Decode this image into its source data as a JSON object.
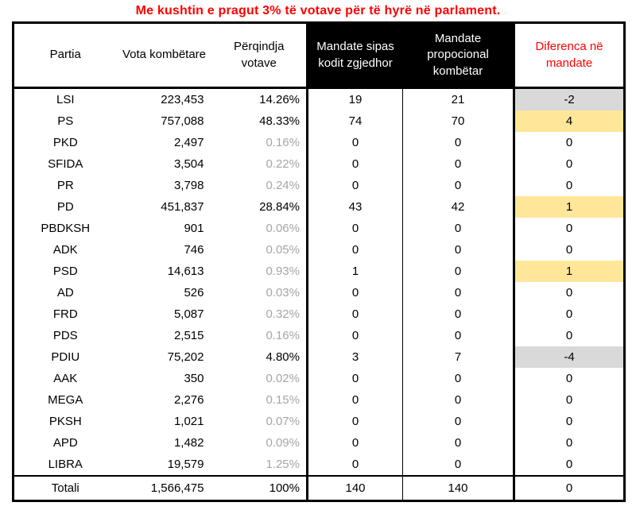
{
  "title": "Me kushtin e pragut 3% të votave për të hyrë në parlament.",
  "colors": {
    "title_text": "#FF0000",
    "mandate_header_bg": "#000000",
    "mandate_header_text": "#FFFFFF",
    "diff_header_text": "#FF0000",
    "highlight_yellow": "#FFE699",
    "highlight_gray": "#D9D9D9",
    "muted_percent_text": "#A6A6A6",
    "body_text": "#000000"
  },
  "chart_data": {
    "type": "table",
    "title": "Me kushtin e pragut 3% të votave për të hyrë në parlament.",
    "columns": [
      "Partia",
      "Vota kombëtare",
      "Përqindja votave",
      "Mandate sipas kodit zgjedhor",
      "Mandate propocional kombëtar",
      "Diferenca në mandate"
    ],
    "rows": [
      {
        "party": "LSI",
        "votes": "223,453",
        "percent": "14.26%",
        "percent_muted": false,
        "mandates_code": 19,
        "mandates_prop": 21,
        "diff": -2,
        "diff_highlight": "gray"
      },
      {
        "party": "PS",
        "votes": "757,088",
        "percent": "48.33%",
        "percent_muted": false,
        "mandates_code": 74,
        "mandates_prop": 70,
        "diff": 4,
        "diff_highlight": "yellow"
      },
      {
        "party": "PKD",
        "votes": "2,497",
        "percent": "0.16%",
        "percent_muted": true,
        "mandates_code": 0,
        "mandates_prop": 0,
        "diff": 0,
        "diff_highlight": "none"
      },
      {
        "party": "SFIDA",
        "votes": "3,504",
        "percent": "0.22%",
        "percent_muted": true,
        "mandates_code": 0,
        "mandates_prop": 0,
        "diff": 0,
        "diff_highlight": "none"
      },
      {
        "party": "PR",
        "votes": "3,798",
        "percent": "0.24%",
        "percent_muted": true,
        "mandates_code": 0,
        "mandates_prop": 0,
        "diff": 0,
        "diff_highlight": "none"
      },
      {
        "party": "PD",
        "votes": "451,837",
        "percent": "28.84%",
        "percent_muted": false,
        "mandates_code": 43,
        "mandates_prop": 42,
        "diff": 1,
        "diff_highlight": "yellow"
      },
      {
        "party": "PBDKSH",
        "votes": "901",
        "percent": "0.06%",
        "percent_muted": true,
        "mandates_code": 0,
        "mandates_prop": 0,
        "diff": 0,
        "diff_highlight": "none"
      },
      {
        "party": "ADK",
        "votes": "746",
        "percent": "0.05%",
        "percent_muted": true,
        "mandates_code": 0,
        "mandates_prop": 0,
        "diff": 0,
        "diff_highlight": "none"
      },
      {
        "party": "PSD",
        "votes": "14,613",
        "percent": "0.93%",
        "percent_muted": true,
        "mandates_code": 1,
        "mandates_prop": 0,
        "diff": 1,
        "diff_highlight": "yellow"
      },
      {
        "party": "AD",
        "votes": "526",
        "percent": "0.03%",
        "percent_muted": true,
        "mandates_code": 0,
        "mandates_prop": 0,
        "diff": 0,
        "diff_highlight": "none"
      },
      {
        "party": "FRD",
        "votes": "5,087",
        "percent": "0.32%",
        "percent_muted": true,
        "mandates_code": 0,
        "mandates_prop": 0,
        "diff": 0,
        "diff_highlight": "none"
      },
      {
        "party": "PDS",
        "votes": "2,515",
        "percent": "0.16%",
        "percent_muted": true,
        "mandates_code": 0,
        "mandates_prop": 0,
        "diff": 0,
        "diff_highlight": "none"
      },
      {
        "party": "PDIU",
        "votes": "75,202",
        "percent": "4.80%",
        "percent_muted": false,
        "mandates_code": 3,
        "mandates_prop": 7,
        "diff": -4,
        "diff_highlight": "gray"
      },
      {
        "party": "AAK",
        "votes": "350",
        "percent": "0.02%",
        "percent_muted": true,
        "mandates_code": 0,
        "mandates_prop": 0,
        "diff": 0,
        "diff_highlight": "none"
      },
      {
        "party": "MEGA",
        "votes": "2,276",
        "percent": "0.15%",
        "percent_muted": true,
        "mandates_code": 0,
        "mandates_prop": 0,
        "diff": 0,
        "diff_highlight": "none"
      },
      {
        "party": "PKSH",
        "votes": "1,021",
        "percent": "0.07%",
        "percent_muted": true,
        "mandates_code": 0,
        "mandates_prop": 0,
        "diff": 0,
        "diff_highlight": "none"
      },
      {
        "party": "APD",
        "votes": "1,482",
        "percent": "0.09%",
        "percent_muted": true,
        "mandates_code": 0,
        "mandates_prop": 0,
        "diff": 0,
        "diff_highlight": "none"
      },
      {
        "party": "LIBRA",
        "votes": "19,579",
        "percent": "1.25%",
        "percent_muted": true,
        "mandates_code": 0,
        "mandates_prop": 0,
        "diff": 0,
        "diff_highlight": "none"
      }
    ],
    "total_row": {
      "party": "Totali",
      "votes": "1,566,475",
      "percent": "100%",
      "mandates_code": 140,
      "mandates_prop": 140,
      "diff": 0
    }
  }
}
